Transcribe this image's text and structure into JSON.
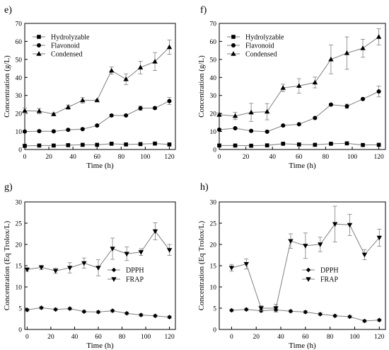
{
  "chart_data": [
    {
      "panel": "e)",
      "type": "line",
      "xlabel": "Time (h)",
      "ylabel": "Concentration (g/L)",
      "xlim": [
        0,
        125
      ],
      "ylim": [
        0,
        70
      ],
      "xticks": [
        0,
        20,
        40,
        60,
        80,
        100,
        120
      ],
      "yticks": [
        0,
        10,
        20,
        30,
        40,
        50,
        60,
        70
      ],
      "legend_position": "top-left",
      "x": [
        0,
        12,
        24,
        36,
        48,
        60,
        72,
        84,
        96,
        108,
        120
      ],
      "series": [
        {
          "name": "Hydrolyzable",
          "marker": "square",
          "values": [
            2.0,
            2.2,
            2.2,
            2.4,
            2.6,
            2.6,
            3.2,
            2.8,
            3.0,
            3.3,
            2.8
          ],
          "errors": [
            0.3,
            0.3,
            0.3,
            0.3,
            0.3,
            0.3,
            0.3,
            0.3,
            0.3,
            0.3,
            0.3
          ]
        },
        {
          "name": "Flavonoid",
          "marker": "circle",
          "values": [
            10.0,
            10.2,
            10.1,
            10.9,
            11.3,
            13.3,
            18.9,
            18.9,
            22.9,
            23.0,
            26.9
          ],
          "errors": [
            0.5,
            0.5,
            0.5,
            0.5,
            0.5,
            0.5,
            0.5,
            0.5,
            1.2,
            0.6,
            2.0
          ]
        },
        {
          "name": "Condensed",
          "marker": "triangle-up",
          "values": [
            21.5,
            21.3,
            19.6,
            23.5,
            27.3,
            27.3,
            43.8,
            39.0,
            45.5,
            48.8,
            56.8
          ],
          "errors": [
            1.5,
            1.5,
            0.7,
            1.2,
            1.5,
            0.5,
            2.0,
            3.0,
            3.5,
            5.0,
            4.0
          ]
        }
      ]
    },
    {
      "panel": "f)",
      "type": "line",
      "xlabel": "Time (h)",
      "ylabel": "Concentration (g/L)",
      "xlim": [
        0,
        125
      ],
      "ylim": [
        0,
        70
      ],
      "xticks": [
        0,
        20,
        40,
        60,
        80,
        100,
        120
      ],
      "yticks": [
        0,
        10,
        20,
        30,
        40,
        50,
        60,
        70
      ],
      "legend_position": "top-left",
      "x": [
        0,
        12,
        24,
        36,
        48,
        60,
        72,
        84,
        96,
        108,
        120
      ],
      "series": [
        {
          "name": "Hydrolyzable",
          "marker": "square",
          "values": [
            2.2,
            2.2,
            2.1,
            2.3,
            3.2,
            2.8,
            2.6,
            3.2,
            3.4,
            2.5,
            2.6
          ],
          "errors": [
            0.3,
            0.3,
            0.3,
            0.3,
            0.3,
            0.3,
            0.3,
            0.3,
            0.3,
            0.3,
            0.3
          ]
        },
        {
          "name": "Flavonoid",
          "marker": "circle",
          "values": [
            11.0,
            11.8,
            10.3,
            9.9,
            13.3,
            14.0,
            17.5,
            24.9,
            24.0,
            28.0,
            32.2
          ],
          "errors": [
            0.5,
            0.5,
            0.5,
            0.5,
            0.5,
            0.5,
            0.5,
            0.5,
            1.2,
            0.6,
            3.0
          ]
        },
        {
          "name": "Condensed",
          "marker": "triangle-up",
          "values": [
            19.3,
            18.6,
            20.6,
            21.0,
            34.2,
            35.3,
            37.2,
            50.0,
            53.5,
            56.2,
            62.5
          ],
          "errors": [
            1.0,
            2.0,
            5.0,
            4.5,
            2.0,
            4.0,
            3.0,
            8.0,
            9.0,
            5.0,
            4.5
          ]
        }
      ]
    },
    {
      "panel": "g)",
      "type": "line",
      "xlabel": "Time (h)",
      "ylabel": "Concentration (Eq Trolox/L)",
      "xlim": [
        -2,
        125
      ],
      "ylim": [
        0,
        30
      ],
      "xticks": [
        0,
        20,
        40,
        60,
        80,
        100,
        120
      ],
      "yticks": [
        0,
        5,
        10,
        15,
        20,
        25,
        30
      ],
      "legend_position": "center-right",
      "x": [
        0,
        12,
        24,
        36,
        48,
        60,
        72,
        84,
        96,
        108,
        120
      ],
      "series": [
        {
          "name": "DPPH",
          "marker": "diamond",
          "values": [
            4.6,
            5.1,
            4.7,
            4.9,
            4.2,
            4.1,
            4.4,
            3.8,
            3.4,
            3.2,
            2.9
          ],
          "errors": [
            0.3,
            0.3,
            0.3,
            0.3,
            0.3,
            0.3,
            0.3,
            0.3,
            0.3,
            0.3,
            0.3
          ]
        },
        {
          "name": "FRAP",
          "marker": "triangle-down",
          "values": [
            14.1,
            14.6,
            13.8,
            14.5,
            15.6,
            14.5,
            19.0,
            17.8,
            18.2,
            23.1,
            18.7
          ],
          "errors": [
            0.4,
            0.5,
            0.6,
            1.2,
            1.2,
            1.9,
            2.5,
            1.6,
            0.8,
            2.0,
            1.3
          ]
        }
      ]
    },
    {
      "panel": "h)",
      "type": "line",
      "xlabel": "Time (h)",
      "ylabel": "Concentration (Eq Trolox/L)",
      "xlim": [
        -10,
        125
      ],
      "ylim": [
        0,
        30
      ],
      "xticks": [
        0,
        20,
        40,
        60,
        80,
        100,
        120
      ],
      "yticks": [
        0,
        5,
        10,
        15,
        20,
        25,
        30
      ],
      "legend_position": "center-right",
      "x": [
        0,
        12,
        24,
        36,
        48,
        60,
        72,
        84,
        96,
        108,
        120
      ],
      "series": [
        {
          "name": "DPPH",
          "marker": "diamond",
          "values": [
            4.5,
            4.7,
            4.4,
            4.6,
            4.3,
            4.1,
            3.6,
            3.2,
            3.0,
            2.0,
            2.2
          ],
          "errors": [
            0.3,
            0.3,
            0.3,
            0.3,
            0.3,
            0.3,
            0.3,
            0.3,
            0.3,
            0.3,
            0.3
          ]
        },
        {
          "name": "FRAP",
          "marker": "triangle-down",
          "values": [
            14.5,
            15.4,
            5.0,
            5.0,
            20.8,
            19.7,
            20.0,
            24.8,
            24.6,
            17.6,
            21.6
          ],
          "errors": [
            0.8,
            1.2,
            0.6,
            0.9,
            1.7,
            3.0,
            1.7,
            4.2,
            2.5,
            1.2,
            2.0
          ]
        }
      ]
    }
  ]
}
